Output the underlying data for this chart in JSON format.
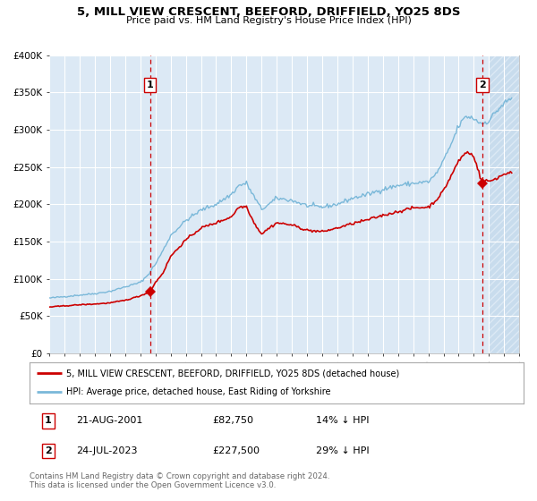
{
  "title": "5, MILL VIEW CRESCENT, BEEFORD, DRIFFIELD, YO25 8DS",
  "subtitle": "Price paid vs. HM Land Registry's House Price Index (HPI)",
  "legend_line1": "5, MILL VIEW CRESCENT, BEEFORD, DRIFFIELD, YO25 8DS (detached house)",
  "legend_line2": "HPI: Average price, detached house, East Riding of Yorkshire",
  "annotation1_date": "21-AUG-2001",
  "annotation1_price": "£82,750",
  "annotation1_hpi": "14% ↓ HPI",
  "annotation2_date": "24-JUL-2023",
  "annotation2_price": "£227,500",
  "annotation2_hpi": "29% ↓ HPI",
  "footer": "Contains HM Land Registry data © Crown copyright and database right 2024.\nThis data is licensed under the Open Government Licence v3.0.",
  "sale1_year": 2001.64,
  "sale1_value": 82750,
  "sale2_year": 2023.56,
  "sale2_value": 227500,
  "hpi_color": "#7ab8d9",
  "price_color": "#cc0000",
  "vline_color": "#cc0000",
  "bg_color": "#dce9f5",
  "hatch_bg_color": "#c8dced",
  "grid_color": "#ffffff",
  "ylim": [
    0,
    400000
  ],
  "xlim_start": 1995,
  "xlim_end": 2026,
  "y_ticks": [
    0,
    50000,
    100000,
    150000,
    200000,
    250000,
    300000,
    350000,
    400000
  ]
}
